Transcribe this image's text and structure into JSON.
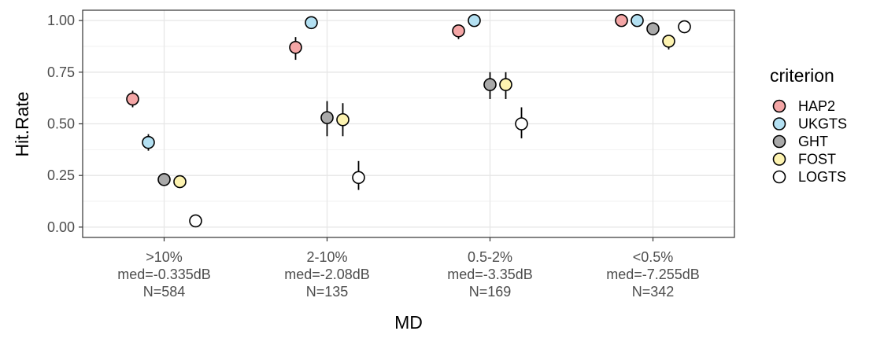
{
  "chart_data": {
    "type": "scatter",
    "xlabel": "MD",
    "ylabel": "Hit.Rate",
    "ylim": [
      -0.05,
      1.05
    ],
    "yticks": [
      "0.00",
      "0.25",
      "0.50",
      "0.75",
      "1.00"
    ],
    "ytick_values": [
      0,
      0.25,
      0.5,
      0.75,
      1
    ],
    "grid": true,
    "legend_position": "right",
    "legend_title": "criterion",
    "categories": [
      [
        ">10%",
        "med=-0.335dB",
        "N=584"
      ],
      [
        "2-10%",
        "med=-2.08dB",
        "N=135"
      ],
      [
        "0.5-2%",
        "med=-3.35dB",
        "N=169"
      ],
      [
        "<0.5%",
        "med=-7.255dB",
        "N=342"
      ]
    ],
    "series": [
      {
        "name": "HAP2",
        "color": "#f4a6a6",
        "values": [
          0.62,
          0.87,
          0.95,
          1.0
        ],
        "lower": [
          0.58,
          0.81,
          0.91,
          1.0
        ],
        "upper": [
          0.66,
          0.92,
          0.98,
          1.0
        ]
      },
      {
        "name": "UKGTS",
        "color": "#b3e0f2",
        "values": [
          0.41,
          0.99,
          1.0,
          1.0
        ],
        "lower": [
          0.37,
          0.97,
          1.0,
          1.0
        ],
        "upper": [
          0.45,
          1.0,
          1.0,
          1.0
        ]
      },
      {
        "name": "GHT",
        "color": "#a9a9a9",
        "values": [
          0.23,
          0.53,
          0.69,
          0.96
        ],
        "lower": [
          0.2,
          0.44,
          0.62,
          0.94
        ],
        "upper": [
          0.26,
          0.61,
          0.75,
          0.98
        ]
      },
      {
        "name": "FOST",
        "color": "#fdf3b0",
        "values": [
          0.22,
          0.52,
          0.69,
          0.9
        ],
        "lower": [
          0.19,
          0.44,
          0.62,
          0.86
        ],
        "upper": [
          0.25,
          0.6,
          0.75,
          0.93
        ]
      },
      {
        "name": "LOGTS",
        "color": "#ffffff",
        "values": [
          0.03,
          0.24,
          0.5,
          0.97
        ],
        "lower": [
          0.02,
          0.18,
          0.43,
          0.95
        ],
        "upper": [
          0.05,
          0.32,
          0.58,
          0.99
        ]
      }
    ]
  }
}
